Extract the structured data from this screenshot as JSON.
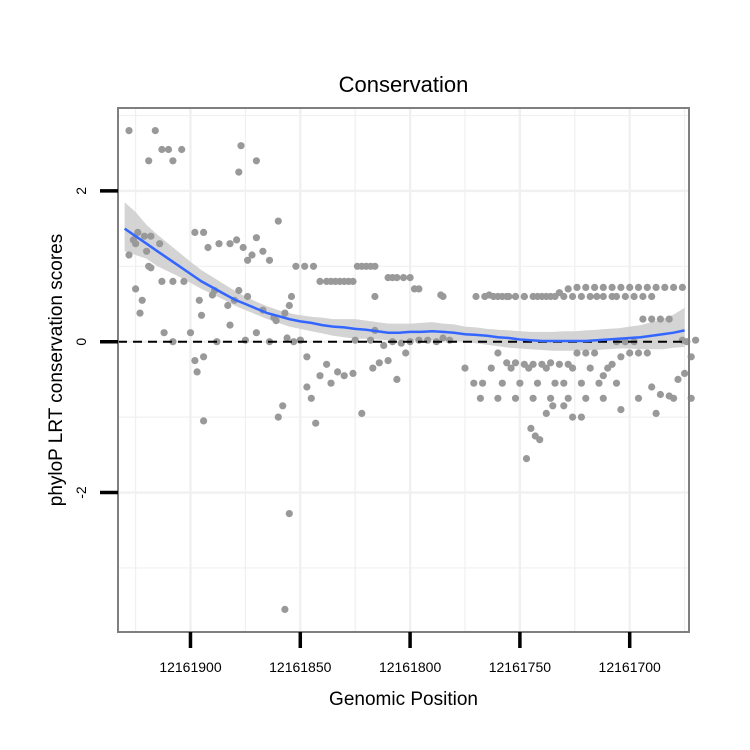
{
  "chart_data": {
    "type": "scatter",
    "title": "Conservation",
    "xlabel": "Genomic Position",
    "ylabel": "phyloP LRT conservation scores",
    "x_reversed": true,
    "xlim": [
      12161933,
      12161673
    ],
    "ylim": [
      -3.85,
      3.1
    ],
    "xticks": [
      12161900,
      12161850,
      12161800,
      12161750,
      12161700
    ],
    "xtick_labels": [
      "12161900",
      "12161850",
      "12161800",
      "12161750",
      "12161700"
    ],
    "yticks": [
      -2,
      0,
      2
    ],
    "ytick_labels": [
      "-2",
      "0",
      "2"
    ],
    "reference_line": {
      "y": 0,
      "style": "dashed",
      "color": "#000000"
    },
    "colors": {
      "points": "#999999",
      "smooth_line": "#3366ff",
      "confidence_band": "#cccccc",
      "grid": "#f0f0f0",
      "border": "#7f7f7f"
    },
    "points": [
      [
        12161928,
        2.8
      ],
      [
        12161916,
        2.8
      ],
      [
        12161913,
        2.55
      ],
      [
        12161910,
        2.55
      ],
      [
        12161904,
        2.55
      ],
      [
        12161908,
        2.4
      ],
      [
        12161919,
        2.4
      ],
      [
        12161877,
        2.6
      ],
      [
        12161870,
        2.4
      ],
      [
        12161878,
        2.25
      ],
      [
        12161926,
        1.35
      ],
      [
        12161924,
        1.45
      ],
      [
        12161921,
        1.4
      ],
      [
        12161918,
        1.4
      ],
      [
        12161914,
        1.3
      ],
      [
        12161928,
        1.15
      ],
      [
        12161920,
        1.2
      ],
      [
        12161925,
        1.3
      ],
      [
        12161898,
        1.45
      ],
      [
        12161894,
        1.45
      ],
      [
        12161887,
        1.3
      ],
      [
        12161892,
        1.25
      ],
      [
        12161882,
        1.3
      ],
      [
        12161879,
        1.35
      ],
      [
        12161876,
        1.25
      ],
      [
        12161870,
        1.38
      ],
      [
        12161872,
        1.15
      ],
      [
        12161874,
        1.08
      ],
      [
        12161867,
        1.2
      ],
      [
        12161864,
        1.08
      ],
      [
        12161860,
        1.6
      ],
      [
        12161925,
        0.7
      ],
      [
        12161918,
        0.98
      ],
      [
        12161919,
        1.0
      ],
      [
        12161913,
        0.8
      ],
      [
        12161908,
        0.8
      ],
      [
        12161903,
        0.8
      ],
      [
        12161922,
        0.55
      ],
      [
        12161923,
        0.38
      ],
      [
        12161896,
        0.55
      ],
      [
        12161890,
        0.62
      ],
      [
        12161889,
        0.68
      ],
      [
        12161883,
        0.48
      ],
      [
        12161880,
        0.55
      ],
      [
        12161878,
        0.68
      ],
      [
        12161874,
        0.6
      ],
      [
        12161867,
        0.42
      ],
      [
        12161862,
        0.32
      ],
      [
        12161857,
        0.38
      ],
      [
        12161855,
        0.48
      ],
      [
        12161854,
        0.6
      ],
      [
        12161912,
        0.12
      ],
      [
        12161908,
        0.0
      ],
      [
        12161900,
        0.12
      ],
      [
        12161895,
        0.35
      ],
      [
        12161888,
        0.0
      ],
      [
        12161882,
        0.22
      ],
      [
        12161875,
        0.02
      ],
      [
        12161870,
        0.12
      ],
      [
        12161864,
        0.0
      ],
      [
        12161861,
        0.28
      ],
      [
        12161856,
        0.05
      ],
      [
        12161853,
        0.0
      ],
      [
        12161850,
        0.02
      ],
      [
        12161850,
        0.02
      ],
      [
        12161898,
        -0.25
      ],
      [
        12161897,
        -0.4
      ],
      [
        12161894,
        -0.2
      ],
      [
        12161894,
        -1.05
      ],
      [
        12161860,
        -1.0
      ],
      [
        12161858,
        -0.85
      ],
      [
        12161855,
        -2.28
      ],
      [
        12161857,
        -3.55
      ],
      [
        12161847,
        -0.6
      ],
      [
        12161845,
        -0.75
      ],
      [
        12161843,
        -1.08
      ],
      [
        12161847,
        -0.2
      ],
      [
        12161841,
        -0.45
      ],
      [
        12161838,
        -0.3
      ],
      [
        12161836,
        -0.55
      ],
      [
        12161833,
        -0.4
      ],
      [
        12161830,
        -0.45
      ],
      [
        12161826,
        -0.42
      ],
      [
        12161822,
        -0.95
      ],
      [
        12161817,
        -0.35
      ],
      [
        12161814,
        -0.28
      ],
      [
        12161810,
        -0.25
      ],
      [
        12161806,
        -0.5
      ],
      [
        12161802,
        -0.15
      ],
      [
        12161852,
        1.0
      ],
      [
        12161848,
        1.0
      ],
      [
        12161844,
        1.0
      ],
      [
        12161841,
        0.8
      ],
      [
        12161838,
        0.8
      ],
      [
        12161836,
        0.8
      ],
      [
        12161834,
        0.8
      ],
      [
        12161832,
        0.8
      ],
      [
        12161830,
        0.8
      ],
      [
        12161828,
        0.8
      ],
      [
        12161826,
        0.8
      ],
      [
        12161824,
        1.0
      ],
      [
        12161822,
        1.0
      ],
      [
        12161820,
        1.0
      ],
      [
        12161818,
        1.0
      ],
      [
        12161816,
        1.0
      ],
      [
        12161816,
        0.6
      ],
      [
        12161810,
        0.85
      ],
      [
        12161808,
        0.85
      ],
      [
        12161806,
        0.85
      ],
      [
        12161803,
        0.85
      ],
      [
        12161800,
        0.85
      ],
      [
        12161798,
        0.7
      ],
      [
        12161796,
        0.7
      ],
      [
        12161825,
        0.02
      ],
      [
        12161818,
        0.02
      ],
      [
        12161816,
        0.15
      ],
      [
        12161812,
        -0.05
      ],
      [
        12161808,
        0.0
      ],
      [
        12161804,
        -0.02
      ],
      [
        12161800,
        0.0
      ],
      [
        12161796,
        0.02
      ],
      [
        12161792,
        0.02
      ],
      [
        12161788,
        0.0
      ],
      [
        12161785,
        0.05
      ],
      [
        12161782,
        0.02
      ],
      [
        12161785,
        0.6
      ],
      [
        12161786,
        0.62
      ],
      [
        12161770,
        0.6
      ],
      [
        12161766,
        0.6
      ],
      [
        12161762,
        0.6
      ],
      [
        12161758,
        0.6
      ],
      [
        12161755,
        0.6
      ],
      [
        12161752,
        0.6
      ],
      [
        12161748,
        0.6
      ],
      [
        12161742,
        0.6
      ],
      [
        12161738,
        0.6
      ],
      [
        12161734,
        0.6
      ],
      [
        12161730,
        0.6
      ],
      [
        12161726,
        0.6
      ],
      [
        12161722,
        0.6
      ],
      [
        12161718,
        0.6
      ],
      [
        12161715,
        0.6
      ],
      [
        12161712,
        0.6
      ],
      [
        12161708,
        0.6
      ],
      [
        12161706,
        0.6
      ],
      [
        12161702,
        0.6
      ],
      [
        12161698,
        0.6
      ],
      [
        12161694,
        0.6
      ],
      [
        12161690,
        0.6
      ],
      [
        12161764,
        0.62
      ],
      [
        12161760,
        0.6
      ],
      [
        12161756,
        0.6
      ],
      [
        12161752,
        0.6
      ],
      [
        12161748,
        0.6
      ],
      [
        12161744,
        0.6
      ],
      [
        12161740,
        0.6
      ],
      [
        12161736,
        0.6
      ],
      [
        12161732,
        0.65
      ],
      [
        12161728,
        0.7
      ],
      [
        12161724,
        0.72
      ],
      [
        12161720,
        0.72
      ],
      [
        12161716,
        0.72
      ],
      [
        12161712,
        0.72
      ],
      [
        12161708,
        0.72
      ],
      [
        12161704,
        0.72
      ],
      [
        12161700,
        0.72
      ],
      [
        12161696,
        0.72
      ],
      [
        12161692,
        0.72
      ],
      [
        12161688,
        0.72
      ],
      [
        12161684,
        0.72
      ],
      [
        12161680,
        0.72
      ],
      [
        12161676,
        0.72
      ],
      [
        12161775,
        -0.35
      ],
      [
        12161771,
        -0.55
      ],
      [
        12161767,
        -0.55
      ],
      [
        12161763,
        -0.35
      ],
      [
        12161758,
        -0.55
      ],
      [
        12161754,
        -0.35
      ],
      [
        12161750,
        -0.55
      ],
      [
        12161746,
        -0.35
      ],
      [
        12161742,
        -0.55
      ],
      [
        12161738,
        -0.35
      ],
      [
        12161734,
        -0.55
      ],
      [
        12161730,
        -0.55
      ],
      [
        12161726,
        -0.35
      ],
      [
        12161722,
        -0.55
      ],
      [
        12161718,
        -0.35
      ],
      [
        12161714,
        -0.55
      ],
      [
        12161710,
        -0.35
      ],
      [
        12161706,
        -0.55
      ],
      [
        12161768,
        -0.75
      ],
      [
        12161760,
        -0.75
      ],
      [
        12161752,
        -0.75
      ],
      [
        12161744,
        -0.75
      ],
      [
        12161736,
        -0.75
      ],
      [
        12161728,
        -0.75
      ],
      [
        12161720,
        -0.75
      ],
      [
        12161712,
        -0.75
      ],
      [
        12161704,
        -0.9
      ],
      [
        12161696,
        -0.75
      ],
      [
        12161688,
        -0.95
      ],
      [
        12161680,
        -0.75
      ],
      [
        12161672,
        -0.75
      ],
      [
        12161747,
        -1.55
      ],
      [
        12161745,
        -1.15
      ],
      [
        12161743,
        -1.25
      ],
      [
        12161741,
        -1.3
      ],
      [
        12161738,
        -0.95
      ],
      [
        12161735,
        -0.85
      ],
      [
        12161730,
        -0.85
      ],
      [
        12161726,
        -1.0
      ],
      [
        12161722,
        -1.0
      ],
      [
        12161760,
        -0.15
      ],
      [
        12161756,
        -0.28
      ],
      [
        12161752,
        -0.28
      ],
      [
        12161748,
        -0.3
      ],
      [
        12161744,
        -0.3
      ],
      [
        12161740,
        -0.3
      ],
      [
        12161736,
        -0.28
      ],
      [
        12161732,
        -0.3
      ],
      [
        12161728,
        -0.3
      ],
      [
        12161724,
        -0.15
      ],
      [
        12161720,
        -0.15
      ],
      [
        12161716,
        -0.15
      ],
      [
        12161712,
        -0.45
      ],
      [
        12161708,
        -0.3
      ],
      [
        12161704,
        -0.2
      ],
      [
        12161700,
        -0.15
      ],
      [
        12161696,
        -0.15
      ],
      [
        12161692,
        -0.15
      ],
      [
        12161690,
        -0.6
      ],
      [
        12161686,
        -0.7
      ],
      [
        12161682,
        -0.72
      ],
      [
        12161678,
        -0.5
      ],
      [
        12161675,
        -0.42
      ],
      [
        12161672,
        -0.2
      ],
      [
        12161694,
        0.3
      ],
      [
        12161690,
        0.3
      ],
      [
        12161686,
        0.3
      ],
      [
        12161682,
        0.3
      ],
      [
        12161706,
        0.0
      ],
      [
        12161702,
        0.0
      ],
      [
        12161698,
        0.0
      ],
      [
        12161674,
        0.0
      ],
      [
        12161670,
        0.02
      ],
      [
        12161676,
        0.02
      ]
    ],
    "smooth_line": {
      "x": [
        12161930,
        12161925,
        12161920,
        12161915,
        12161910,
        12161905,
        12161900,
        12161895,
        12161890,
        12161885,
        12161880,
        12161875,
        12161870,
        12161865,
        12161860,
        12161855,
        12161850,
        12161845,
        12161840,
        12161835,
        12161830,
        12161825,
        12161820,
        12161815,
        12161810,
        12161805,
        12161800,
        12161795,
        12161790,
        12161785,
        12161780,
        12161775,
        12161770,
        12161765,
        12161760,
        12161755,
        12161750,
        12161745,
        12161740,
        12161735,
        12161730,
        12161725,
        12161720,
        12161715,
        12161710,
        12161705,
        12161700,
        12161695,
        12161690,
        12161685,
        12161680,
        12161675
      ],
      "y": [
        1.5,
        1.4,
        1.3,
        1.2,
        1.1,
        1.0,
        0.9,
        0.8,
        0.72,
        0.64,
        0.56,
        0.5,
        0.44,
        0.38,
        0.34,
        0.3,
        0.27,
        0.25,
        0.22,
        0.2,
        0.19,
        0.17,
        0.16,
        0.14,
        0.12,
        0.12,
        0.13,
        0.13,
        0.14,
        0.13,
        0.12,
        0.1,
        0.09,
        0.08,
        0.06,
        0.05,
        0.03,
        0.02,
        0.01,
        0.01,
        0.01,
        0.01,
        0.01,
        0.02,
        0.03,
        0.04,
        0.05,
        0.06,
        0.08,
        0.1,
        0.12,
        0.15
      ],
      "lower": [
        1.2,
        1.15,
        1.1,
        1.0,
        0.93,
        0.86,
        0.78,
        0.7,
        0.63,
        0.56,
        0.48,
        0.42,
        0.36,
        0.3,
        0.25,
        0.2,
        0.17,
        0.14,
        0.11,
        0.08,
        0.06,
        0.04,
        0.04,
        0.03,
        0.02,
        0.02,
        0.02,
        0.02,
        0.02,
        0.02,
        0.01,
        0.0,
        -0.02,
        -0.04,
        -0.06,
        -0.08,
        -0.09,
        -0.1,
        -0.11,
        -0.12,
        -0.12,
        -0.12,
        -0.12,
        -0.11,
        -0.1,
        -0.09,
        -0.09,
        -0.1,
        -0.1,
        -0.1,
        -0.08,
        -0.07
      ],
      "upper": [
        1.85,
        1.72,
        1.55,
        1.42,
        1.3,
        1.18,
        1.06,
        0.95,
        0.86,
        0.77,
        0.68,
        0.6,
        0.53,
        0.47,
        0.42,
        0.38,
        0.35,
        0.33,
        0.32,
        0.3,
        0.3,
        0.3,
        0.28,
        0.26,
        0.24,
        0.24,
        0.24,
        0.25,
        0.26,
        0.24,
        0.23,
        0.2,
        0.19,
        0.17,
        0.16,
        0.15,
        0.14,
        0.13,
        0.13,
        0.13,
        0.14,
        0.14,
        0.15,
        0.16,
        0.17,
        0.18,
        0.2,
        0.22,
        0.26,
        0.3,
        0.36,
        0.45
      ]
    }
  }
}
